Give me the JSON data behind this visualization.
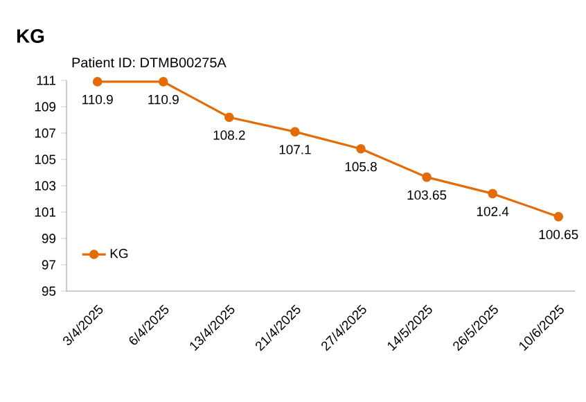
{
  "chart_data": {
    "type": "line",
    "title": "KG",
    "subtitle": "Patient ID: DTMB00275A",
    "categories": [
      "3/4/2025",
      "6/4/2025",
      "13/4/2025",
      "21/4/2025",
      "27/4/2025",
      "14/5/2025",
      "26/5/2025",
      "10/6/2025"
    ],
    "series": [
      {
        "name": "KG",
        "color": "#e36c09",
        "values": [
          110.9,
          110.9,
          108.2,
          107.1,
          105.8,
          103.65,
          102.4,
          100.65
        ]
      }
    ],
    "ylim": [
      95,
      111
    ],
    "yticks": [
      95,
      97,
      99,
      101,
      103,
      105,
      107,
      109,
      111
    ],
    "data_labels": true,
    "legend": "bottom left",
    "marker": "circle",
    "line_style": "solid",
    "grid": false
  }
}
